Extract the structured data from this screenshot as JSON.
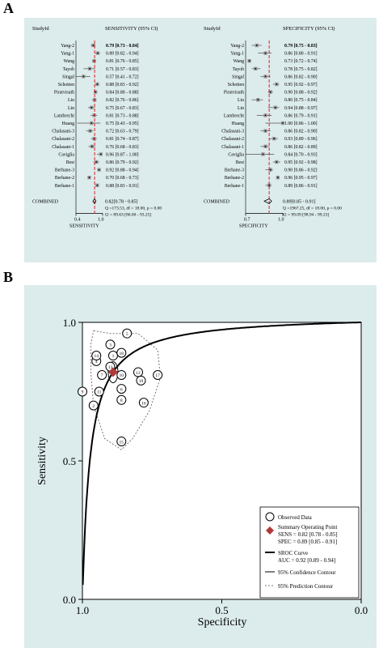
{
  "panel_a_label": "A",
  "panel_b_label": "B",
  "forest": {
    "studies": [
      "Yang-2",
      "Yang-1",
      "Wang",
      "Tayob",
      "Singal",
      "Schotten",
      "Piratvisuth",
      "Liu",
      "Lin",
      "Lambrecht",
      "Huang",
      "Chalasani-3",
      "Chalasani-2",
      "Chalasani-1",
      "Caviglia",
      "Best",
      "Berhane-3",
      "Berhane-2",
      "Berhane-1"
    ],
    "sensitivity": {
      "header_study": "StudyId",
      "header_ci": "SENSITIVITY (95% CI)",
      "estimates": [
        0.79,
        0.89,
        0.81,
        0.71,
        0.57,
        0.88,
        0.84,
        0.82,
        0.75,
        0.81,
        0.75,
        0.72,
        0.81,
        0.76,
        0.96,
        0.86,
        0.92,
        0.7,
        0.88
      ],
      "lower": [
        0.73,
        0.82,
        0.76,
        0.57,
        0.41,
        0.83,
        0.8,
        0.76,
        0.67,
        0.73,
        0.43,
        0.63,
        0.74,
        0.68,
        0.87,
        0.79,
        0.88,
        0.68,
        0.83
      ],
      "upper": [
        0.84,
        0.94,
        0.85,
        0.83,
        0.72,
        0.92,
        0.88,
        0.86,
        0.83,
        0.88,
        0.95,
        0.79,
        0.87,
        0.83,
        1.0,
        0.92,
        0.94,
        0.73,
        0.91
      ],
      "ci_labels": [
        "0.79 [0.73 - 0.84]",
        "0.89 [0.82 - 0.94]",
        "0.81 [0.76 - 0.85]",
        "0.71 [0.57 - 0.83]",
        "0.57 [0.41 - 0.72]",
        "0.88 [0.83 - 0.92]",
        "0.84 [0.80 - 0.88]",
        "0.82 [0.76 - 0.86]",
        "0.75 [0.67 - 0.83]",
        "0.81 [0.73 - 0.88]",
        "0.75 [0.43 - 0.95]",
        "0.72 [0.63 - 0.79]",
        "0.81 [0.74 - 0.87]",
        "0.76 [0.68 - 0.83]",
        "0.96 [0.87 - 1.00]",
        "0.86 [0.79 - 0.92]",
        "0.92 [0.88 - 0.94]",
        "0.70 [0.68 - 0.73]",
        "0.88 [0.83 - 0.91]"
      ],
      "combined_label": "COMBINED",
      "combined_estimate": 0.82,
      "combined_lower": 0.78,
      "combined_upper": 0.85,
      "combined_ci": "0.82[0.78 - 0.85]",
      "q_stat": "Q =173.53, df = 18.00, p = 0.00",
      "i2_stat": "I2 = 89.63 [86.00 - 93.25]",
      "axis_min": 0.4,
      "axis_max": 1.0,
      "tick_label": "0.4",
      "tick_label_right": "1.0",
      "axis_title": "SENSITIVITY"
    },
    "specificity": {
      "header_study": "StudyId",
      "header_ci": "SPECIFICITY (95% CI)",
      "estimates": [
        0.79,
        0.86,
        0.73,
        0.78,
        0.86,
        0.95,
        0.9,
        0.8,
        0.94,
        0.86,
        1.0,
        0.86,
        0.93,
        0.86,
        0.84,
        0.95,
        0.9,
        0.96,
        0.89
      ],
      "lower": [
        0.75,
        0.8,
        0.72,
        0.75,
        0.82,
        0.92,
        0.88,
        0.75,
        0.88,
        0.79,
        0.86,
        0.82,
        0.89,
        0.82,
        0.7,
        0.92,
        0.86,
        0.95,
        0.86
      ],
      "upper": [
        0.83,
        0.91,
        0.74,
        0.82,
        0.9,
        0.97,
        0.92,
        0.84,
        0.97,
        0.91,
        1.0,
        0.9,
        0.96,
        0.89,
        0.93,
        0.98,
        0.92,
        0.97,
        0.91
      ],
      "ci_labels": [
        "0.79 [0.75 - 0.83]",
        "0.86 [0.80 - 0.91]",
        "0.73 [0.72 - 0.74]",
        "0.78 [0.75 - 0.82]",
        "0.86 [0.82 - 0.90]",
        "0.95 [0.92 - 0.97]",
        "0.90 [0.88 - 0.92]",
        "0.80 [0.75 - 0.84]",
        "0.94 [0.88 - 0.97]",
        "0.86 [0.79 - 0.91]",
        "1.00 [0.86 - 1.00]",
        "0.86 [0.82 - 0.90]",
        "0.93 [0.89 - 0.96]",
        "0.86 [0.82 - 0.89]",
        "0.84 [0.70 - 0.93]",
        "0.95 [0.92 - 0.98]",
        "0.90 [0.86 - 0.92]",
        "0.96 [0.95 - 0.97]",
        "0.89 [0.86 - 0.91]"
      ],
      "combined_label": "COMBINED",
      "combined_estimate": 0.89,
      "combined_lower": 0.85,
      "combined_upper": 0.91,
      "combined_ci": "0.89[0.85 - 0.91]",
      "q_stat": "Q =1967.25, df = 18.00, p = 0.00",
      "i2_stat": "I2 = 99.09 [98.94 - 99.23]",
      "axis_min": 0.7,
      "axis_max": 1.0,
      "tick_label": "0.7",
      "tick_label_right": "1.0",
      "axis_title": "SPECIFICITY"
    }
  },
  "chart_data": {
    "type": "scatter",
    "title": "",
    "xlabel": "Specificity",
    "ylabel": "Sensitivity",
    "xlim": [
      1.0,
      0.0
    ],
    "ylim": [
      0.0,
      1.0
    ],
    "x_ticks": [
      "1.0",
      "0.5",
      "0.0"
    ],
    "y_ticks": [
      "0.0",
      "0.5",
      "1.0"
    ],
    "points": [
      {
        "label": "1",
        "specificity": 0.89,
        "sensitivity": 0.88
      },
      {
        "label": "2",
        "specificity": 0.96,
        "sensitivity": 0.7
      },
      {
        "label": "3",
        "specificity": 0.9,
        "sensitivity": 0.92
      },
      {
        "label": "4",
        "specificity": 0.95,
        "sensitivity": 0.86
      },
      {
        "label": "5",
        "specificity": 0.84,
        "sensitivity": 0.96
      },
      {
        "label": "6",
        "specificity": 0.86,
        "sensitivity": 0.76
      },
      {
        "label": "7",
        "specificity": 0.93,
        "sensitivity": 0.81
      },
      {
        "label": "8",
        "specificity": 0.86,
        "sensitivity": 0.72
      },
      {
        "label": "9",
        "specificity": 1.0,
        "sensitivity": 0.75
      },
      {
        "label": "10",
        "specificity": 0.86,
        "sensitivity": 0.81
      },
      {
        "label": "11",
        "specificity": 0.94,
        "sensitivity": 0.75
      },
      {
        "label": "12",
        "specificity": 0.8,
        "sensitivity": 0.82
      },
      {
        "label": "13",
        "specificity": 0.9,
        "sensitivity": 0.84
      },
      {
        "label": "14",
        "specificity": 0.95,
        "sensitivity": 0.88
      },
      {
        "label": "15",
        "specificity": 0.86,
        "sensitivity": 0.57
      },
      {
        "label": "16",
        "specificity": 0.78,
        "sensitivity": 0.71
      },
      {
        "label": "17",
        "specificity": 0.73,
        "sensitivity": 0.81
      },
      {
        "label": "18",
        "specificity": 0.86,
        "sensitivity": 0.89
      },
      {
        "label": "19",
        "specificity": 0.79,
        "sensitivity": 0.79
      }
    ],
    "summary_point": {
      "specificity": 0.89,
      "sensitivity": 0.82
    },
    "legend": {
      "observed": "Observed Data",
      "summary": "Summary Operating Point",
      "sens_text": "SENS = 0.82 [0.78 - 0.85]",
      "spec_text": "SPEC = 0.89 [0.85 - 0.91]",
      "sroc": "SROC Curve",
      "auc_text": "AUC = 0.92 [0.89 - 0.94]",
      "confidence": "95% Confidence Contour",
      "prediction": "95% Prediction Contour",
      "placement": "bottom-right"
    },
    "colors": {
      "summary": "#b03a3a",
      "ref_line": "#e0202a",
      "panel_bg": "#dcebeb",
      "prediction": "#777777"
    }
  }
}
